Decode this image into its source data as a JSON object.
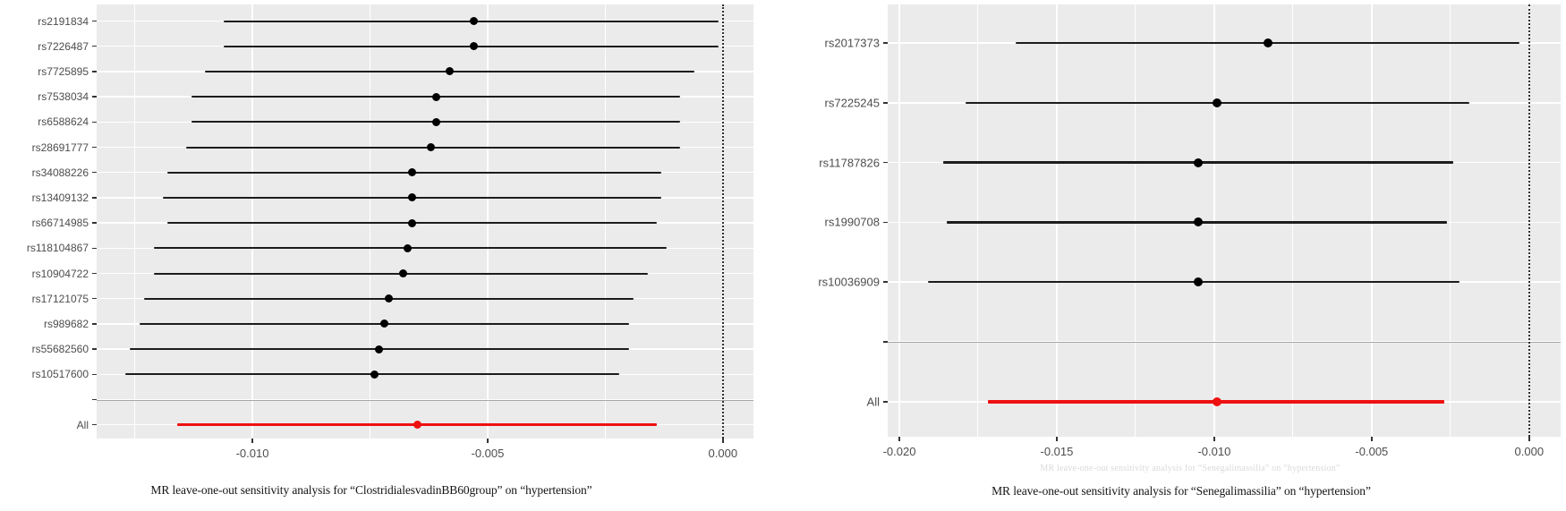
{
  "style_colors": {
    "panel_background": "#ebebeb",
    "gridline": "#ffffff",
    "axis_text": "#4d4d4d",
    "separator_line": "#a6a6a6",
    "zero_line": "#2e2e2e"
  },
  "chart_data": [
    {
      "type": "scatter",
      "subtype": "forest-plot-leave-one-out",
      "caption": "MR leave-one-out sensitivity analysis for “ClostridialesvadinBB60group” on “hypertension”",
      "categories": [
        "rs2191834",
        "rs7226487",
        "rs7725895",
        "rs7538034",
        "rs6588624",
        "rs28691777",
        "rs34088226",
        "rs13409132",
        "rs66714985",
        "rs118104867",
        "rs10904722",
        "rs17121075",
        "rs989682",
        "rs55682560",
        "rs10517600",
        "",
        "All"
      ],
      "points": [
        {
          "label": "rs2191834",
          "estimate": -0.0053,
          "ci_low": -0.0106,
          "ci_high": -0.0001,
          "highlight": false
        },
        {
          "label": "rs7226487",
          "estimate": -0.0053,
          "ci_low": -0.0106,
          "ci_high": -0.0001,
          "highlight": false
        },
        {
          "label": "rs7725895",
          "estimate": -0.0058,
          "ci_low": -0.011,
          "ci_high": -0.0006,
          "highlight": false
        },
        {
          "label": "rs7538034",
          "estimate": -0.0061,
          "ci_low": -0.0113,
          "ci_high": -0.0009,
          "highlight": false
        },
        {
          "label": "rs6588624",
          "estimate": -0.0061,
          "ci_low": -0.0113,
          "ci_high": -0.0009,
          "highlight": false
        },
        {
          "label": "rs28691777",
          "estimate": -0.0062,
          "ci_low": -0.0114,
          "ci_high": -0.0009,
          "highlight": false
        },
        {
          "label": "rs34088226",
          "estimate": -0.0066,
          "ci_low": -0.0118,
          "ci_high": -0.0013,
          "highlight": false
        },
        {
          "label": "rs13409132",
          "estimate": -0.0066,
          "ci_low": -0.0119,
          "ci_high": -0.0013,
          "highlight": false
        },
        {
          "label": "rs66714985",
          "estimate": -0.0066,
          "ci_low": -0.0118,
          "ci_high": -0.0014,
          "highlight": false
        },
        {
          "label": "rs118104867",
          "estimate": -0.0067,
          "ci_low": -0.0121,
          "ci_high": -0.0012,
          "highlight": false
        },
        {
          "label": "rs10904722",
          "estimate": -0.0068,
          "ci_low": -0.0121,
          "ci_high": -0.0016,
          "highlight": false
        },
        {
          "label": "rs17121075",
          "estimate": -0.0071,
          "ci_low": -0.0123,
          "ci_high": -0.0019,
          "highlight": false
        },
        {
          "label": "rs989682",
          "estimate": -0.0072,
          "ci_low": -0.0124,
          "ci_high": -0.002,
          "highlight": false
        },
        {
          "label": "rs55682560",
          "estimate": -0.0073,
          "ci_low": -0.0126,
          "ci_high": -0.002,
          "highlight": false
        },
        {
          "label": "rs10517600",
          "estimate": -0.0074,
          "ci_low": -0.0127,
          "ci_high": -0.0022,
          "highlight": false
        },
        null,
        {
          "label": "All",
          "estimate": -0.0065,
          "ci_low": -0.0116,
          "ci_high": -0.0014,
          "highlight": true
        }
      ],
      "xticks": [
        -0.01,
        -0.005,
        0.0
      ],
      "xtick_labels": [
        "-0.010",
        "-0.005",
        "0.000"
      ],
      "xlim": [
        -0.01331,
        0.00065
      ],
      "zero_line": 0,
      "grid": true,
      "legend": null,
      "colors": {
        "point": "#000000",
        "ci": "#1c1c1c",
        "all": "#ee1111"
      }
    },
    {
      "type": "scatter",
      "subtype": "forest-plot-leave-one-out",
      "caption": "MR leave-one-out sensitivity analysis for “Senegalimassilia” on “hypertension”",
      "ghost_caption": "MR leave-one-out sensitivity analysis for “Senegalimassilia” on “hypertension”",
      "categories": [
        "rs2017373",
        "rs7225245",
        "rs11787826",
        "rs1990708",
        "rs10036909",
        "",
        "All"
      ],
      "points": [
        {
          "label": "rs2017373",
          "estimate": -0.0083,
          "ci_low": -0.0163,
          "ci_high": -0.0003,
          "highlight": false
        },
        {
          "label": "rs7225245",
          "estimate": -0.0099,
          "ci_low": -0.0179,
          "ci_high": -0.0019,
          "highlight": false
        },
        {
          "label": "rs11787826",
          "estimate": -0.0105,
          "ci_low": -0.0186,
          "ci_high": -0.0024,
          "highlight": false
        },
        {
          "label": "rs1990708",
          "estimate": -0.0105,
          "ci_low": -0.0185,
          "ci_high": -0.0026,
          "highlight": false
        },
        {
          "label": "rs10036909",
          "estimate": -0.0105,
          "ci_low": -0.0191,
          "ci_high": -0.0022,
          "highlight": false
        },
        null,
        {
          "label": "All",
          "estimate": -0.0099,
          "ci_low": -0.0172,
          "ci_high": -0.0027,
          "highlight": true
        }
      ],
      "xticks": [
        -0.02,
        -0.015,
        -0.01,
        -0.005,
        0.0
      ],
      "xtick_labels": [
        "-0.020",
        "-0.015",
        "-0.010",
        "-0.005",
        "0.000"
      ],
      "xlim": [
        -0.02037,
        0.001
      ],
      "zero_line": 0,
      "grid": true,
      "legend": null,
      "colors": {
        "point": "#000000",
        "ci": "#1c1c1c",
        "all": "#ee1111"
      }
    }
  ]
}
